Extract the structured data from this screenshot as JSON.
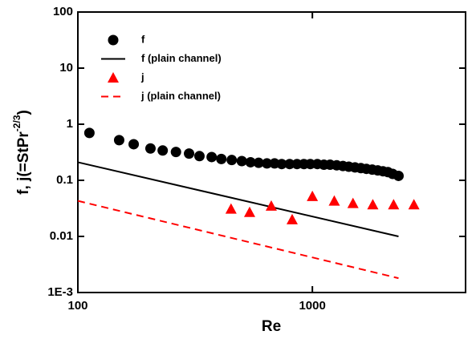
{
  "chart_data": {
    "type": "scatter",
    "xlabel": "Re",
    "ylabel": [
      "f, j(=StPr",
      "-2/3",
      ")"
    ],
    "xscale": "log",
    "yscale": "log",
    "xlim": [
      100,
      4500
    ],
    "ylim": [
      0.001,
      100
    ],
    "xticks": [
      100,
      1000
    ],
    "yticks": [
      {
        "value": 0.001,
        "label": "1E-3"
      },
      0.01,
      0.1,
      1,
      10,
      100
    ],
    "legend": "upper-left",
    "series": [
      {
        "name": "f",
        "color": "#000000",
        "style": "marker",
        "marker": "circle",
        "x": [
          112,
          150,
          173,
          204,
          230,
          262,
          298,
          330,
          372,
          409,
          453,
          500,
          545,
          590,
          640,
          690,
          740,
          800,
          860,
          920,
          980,
          1050,
          1120,
          1190,
          1270,
          1350,
          1430,
          1520,
          1610,
          1700,
          1800,
          1900,
          2000,
          2100,
          2200,
          2330
        ],
        "values": [
          0.7,
          0.52,
          0.44,
          0.37,
          0.34,
          0.32,
          0.3,
          0.27,
          0.26,
          0.24,
          0.23,
          0.22,
          0.21,
          0.205,
          0.2,
          0.2,
          0.195,
          0.195,
          0.195,
          0.195,
          0.195,
          0.195,
          0.19,
          0.19,
          0.185,
          0.18,
          0.175,
          0.17,
          0.165,
          0.16,
          0.155,
          0.15,
          0.145,
          0.14,
          0.13,
          0.12
        ]
      },
      {
        "name": "f (plain channel)",
        "color": "#000000",
        "style": "line",
        "dash": false,
        "x": [
          100,
          2330
        ],
        "values": [
          0.21,
          0.01
        ]
      },
      {
        "name": "j",
        "color": "#ff0000",
        "style": "marker",
        "marker": "triangle",
        "x": [
          450,
          540,
          668,
          820,
          1000,
          1240,
          1490,
          1810,
          2220,
          2710
        ],
        "values": [
          0.031,
          0.027,
          0.035,
          0.02,
          0.052,
          0.043,
          0.039,
          0.037,
          0.037,
          0.037
        ]
      },
      {
        "name": "j (plain channel)",
        "color": "#ff0000",
        "style": "line",
        "dash": true,
        "x": [
          100,
          2330
        ],
        "values": [
          0.043,
          0.0018
        ]
      }
    ]
  }
}
